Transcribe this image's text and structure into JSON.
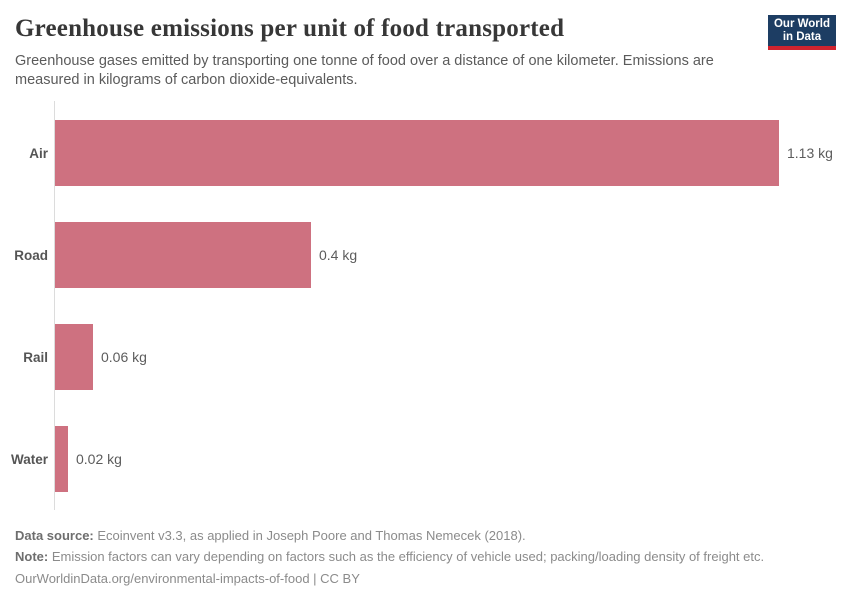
{
  "header": {
    "title": "Greenhouse emissions per unit of food transported",
    "subtitle": "Greenhouse gases emitted by transporting one tonne of food over a distance of one kilometer. Emissions are measured in kilograms of carbon dioxide-equivalents.",
    "logo": {
      "line1": "Our World",
      "line2": "in Data"
    }
  },
  "chart_data": {
    "type": "bar",
    "orientation": "horizontal",
    "title": "Greenhouse emissions per unit of food transported",
    "categories": [
      "Air",
      "Road",
      "Rail",
      "Water"
    ],
    "values": [
      1.13,
      0.4,
      0.06,
      0.02
    ],
    "value_labels": [
      "1.13 kg",
      "0.4 kg",
      "0.06 kg",
      "0.02 kg"
    ],
    "unit": "kg CO2-equivalents per tonne-kilometer",
    "xlim": [
      0,
      1.13
    ],
    "grid": false,
    "legend": "none",
    "bar_color": "#ce7180",
    "axis_color": "#dcdcdc"
  },
  "footer": {
    "data_source_label": "Data source:",
    "data_source_text": " Ecoinvent v3.3, as applied in Joseph Poore and Thomas Nemecek (2018).",
    "note_label": "Note:",
    "note_text": " Emission factors can vary depending on factors such as the efficiency of vehicle used; packing/loading density of freight etc.",
    "link_text": "OurWorldinData.org/environmental-impacts-of-food | CC BY"
  },
  "colors": {
    "logo_navy": "#1d3d63",
    "logo_red": "#d0232e",
    "title": "#373737",
    "subtitle": "#5b5b5b"
  }
}
